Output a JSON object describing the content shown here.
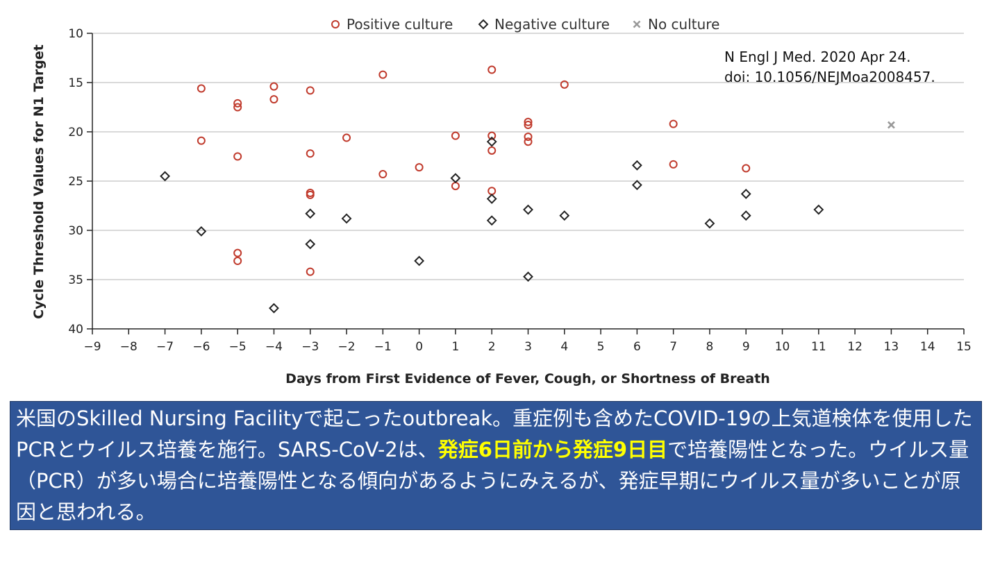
{
  "chart_data": {
    "type": "scatter",
    "xlabel": "Days from First Evidence of Fever, Cough, or Shortness of Breath",
    "ylabel": "Cycle Threshold Values for N1 Target",
    "xlim": [
      -9,
      15
    ],
    "ylim": [
      10,
      40
    ],
    "y_inverted": true,
    "x_ticks": [
      -9,
      -8,
      -7,
      -6,
      -5,
      -4,
      -3,
      -2,
      -1,
      0,
      1,
      2,
      3,
      4,
      5,
      6,
      7,
      8,
      9,
      10,
      11,
      12,
      13,
      14,
      15
    ],
    "y_ticks": [
      10,
      15,
      20,
      25,
      30,
      35,
      40
    ],
    "grid": "horizontal",
    "legend_position": "top-center",
    "series": [
      {
        "name": "Positive culture",
        "marker": "circle-open",
        "color": "#c0392b",
        "points": [
          [
            -6,
            15.6
          ],
          [
            -6,
            20.9
          ],
          [
            -5,
            17.1
          ],
          [
            -5,
            17.5
          ],
          [
            -5,
            22.5
          ],
          [
            -5,
            32.3
          ],
          [
            -5,
            33.1
          ],
          [
            -4,
            15.4
          ],
          [
            -4,
            16.7
          ],
          [
            -3,
            15.8
          ],
          [
            -3,
            22.2
          ],
          [
            -3,
            26.2
          ],
          [
            -3,
            26.4
          ],
          [
            -3,
            34.2
          ],
          [
            -2,
            20.6
          ],
          [
            -1,
            14.2
          ],
          [
            -1,
            24.3
          ],
          [
            0,
            23.6
          ],
          [
            1,
            20.4
          ],
          [
            1,
            25.5
          ],
          [
            2,
            13.7
          ],
          [
            2,
            20.4
          ],
          [
            2,
            21.9
          ],
          [
            2,
            26.0
          ],
          [
            3,
            19.0
          ],
          [
            3,
            19.3
          ],
          [
            3,
            20.5
          ],
          [
            3,
            21.0
          ],
          [
            4,
            15.2
          ],
          [
            7,
            19.2
          ],
          [
            7,
            23.3
          ],
          [
            9,
            23.7
          ]
        ]
      },
      {
        "name": "Negative culture",
        "marker": "diamond-open",
        "color": "#222222",
        "points": [
          [
            -7,
            24.5
          ],
          [
            -6,
            30.1
          ],
          [
            -4,
            37.9
          ],
          [
            -3,
            28.3
          ],
          [
            -3,
            31.4
          ],
          [
            -2,
            28.8
          ],
          [
            0,
            33.1
          ],
          [
            1,
            24.7
          ],
          [
            2,
            21.0
          ],
          [
            2,
            26.8
          ],
          [
            2,
            29.0
          ],
          [
            3,
            27.9
          ],
          [
            3,
            34.7
          ],
          [
            4,
            28.5
          ],
          [
            6,
            23.4
          ],
          [
            6,
            25.4
          ],
          [
            8,
            29.3
          ],
          [
            9,
            26.3
          ],
          [
            9,
            28.5
          ],
          [
            11,
            27.9
          ]
        ]
      },
      {
        "name": "No culture",
        "marker": "x",
        "color": "#999999",
        "points": [
          [
            13,
            19.3
          ]
        ]
      }
    ]
  },
  "citation": {
    "line1": "N Engl J Med. 2020 Apr 24.",
    "line2": "doi: 10.1056/NEJMoa2008457."
  },
  "summary": {
    "part1": "米国のSkilled Nursing Facilityで起こったoutbreak。重症例も含めたCOVID-19の上気道検体を使用したPCRとウイルス培養を施行。SARS-CoV-2は、",
    "highlight": "発症6日前から発症9日目",
    "part2": "で培養陽性となった。ウイルス量（PCR）が多い場合に培養陽性となる傾向があるようにみえるが、発症早期にウイルス量が多いことが原因と思われる。"
  },
  "colors": {
    "positive": "#c0392b",
    "negative": "#222222",
    "no_culture": "#999999",
    "box_bg": "#2f5597",
    "highlight": "#ffff00"
  }
}
